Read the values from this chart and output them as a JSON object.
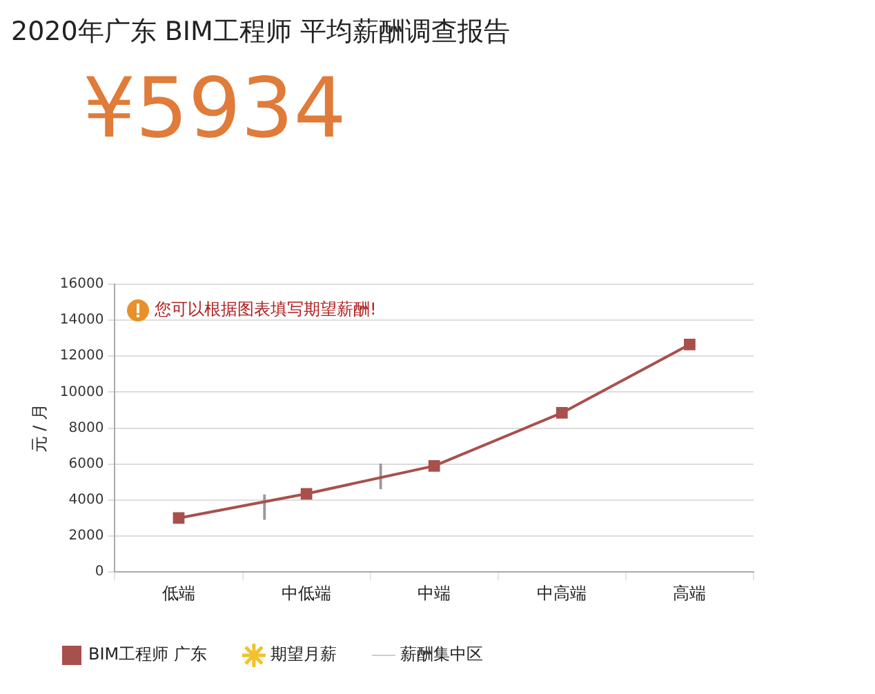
{
  "chart_data": {
    "type": "line",
    "title": "2020年广东 BIM工程师 平均薪酬调查报告",
    "subtitle": "¥5934",
    "ylabel": "元 / 月",
    "annotations": [
      "您可以根据图表填写期望薪酬!"
    ],
    "categories": [
      "低端",
      "中低端",
      "中端",
      "中高端",
      "高端"
    ],
    "series": [
      {
        "name": "BIM工程师 广东",
        "color": "#a8504c",
        "values": [
          3000,
          4350,
          5900,
          8850,
          12650
        ]
      },
      {
        "name": "期望月薪",
        "type": "scatter",
        "marker": "star",
        "color": "#f2c12e",
        "values": [
          null,
          null,
          null,
          null,
          null
        ]
      },
      {
        "name": "薪酬集中区",
        "type": "bar",
        "color": "#9a9a9a",
        "base": [
          null,
          2900,
          4600,
          null,
          null
        ],
        "values": [
          null,
          1400,
          1400,
          null,
          null
        ]
      }
    ],
    "marker": "square",
    "ylim": [
      0,
      16000
    ],
    "yticks": [
      0,
      2000,
      4000,
      6000,
      8000,
      10000,
      12000,
      14000,
      16000
    ],
    "grid": "y",
    "legend": "bottom"
  }
}
